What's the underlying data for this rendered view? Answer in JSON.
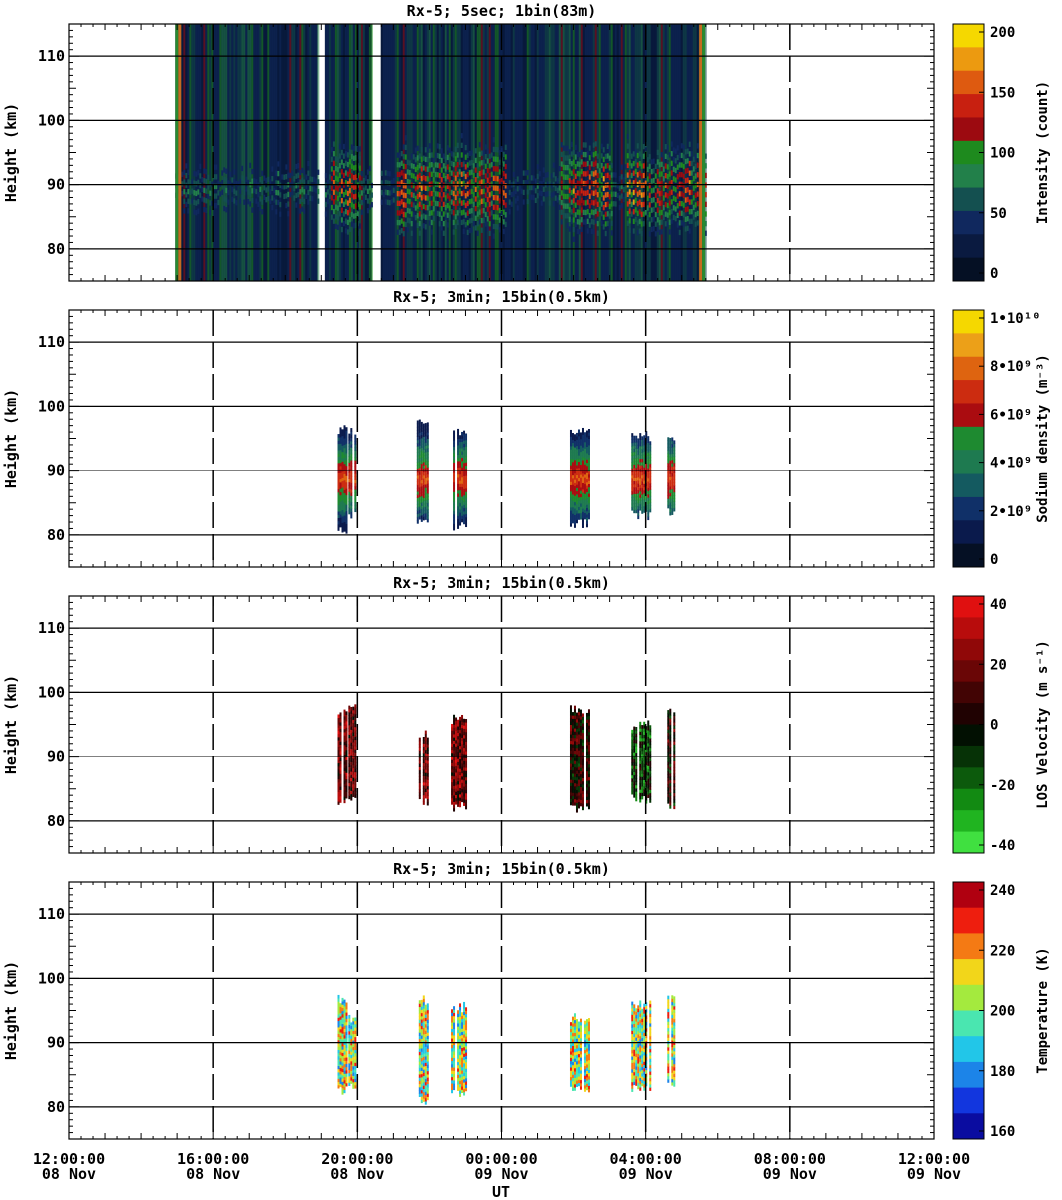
{
  "x_axis": {
    "label": "UT",
    "ticks": [
      {
        "time": "12:00:00",
        "date": "08 Nov"
      },
      {
        "time": "16:00:00",
        "date": "08 Nov"
      },
      {
        "time": "20:00:00",
        "date": "08 Nov"
      },
      {
        "time": "00:00:00",
        "date": "09 Nov"
      },
      {
        "time": "04:00:00",
        "date": "09 Nov"
      },
      {
        "time": "08:00:00",
        "date": "09 Nov"
      },
      {
        "time": "12:00:00",
        "date": "09 Nov"
      }
    ]
  },
  "chart_data": [
    {
      "type": "heatmap",
      "title": "Rx-5;  5sec; 1bin(83m)",
      "ylabel": "Height (km)",
      "y_ticks": [
        "110",
        "100",
        "90",
        "80"
      ],
      "ylim": [
        75,
        115
      ],
      "x_range_hours": [
        0,
        24
      ],
      "colorbar": {
        "label": "Intensity (count)",
        "ticks": [
          "200",
          "150",
          "100",
          "50",
          "0"
        ],
        "colors": [
          "#f5d800",
          "#ec9a10",
          "#de5a10",
          "#c82010",
          "#9c0a10",
          "#1e8a1e",
          "#22804a",
          "#145050",
          "#10285e",
          "#0a1a40",
          "#051024"
        ]
      },
      "data_segments_hours": [
        [
          2.95,
          6.9
        ],
        [
          7.1,
          8.4
        ],
        [
          8.65,
          17.65
        ]
      ],
      "layer_peak_height_km": 89
    },
    {
      "type": "heatmap",
      "title": "Rx-5; 3min; 15bin(0.5km)",
      "ylabel": "Height (km)",
      "y_ticks": [
        "110",
        "100",
        "90",
        "80"
      ],
      "ylim": [
        75,
        115
      ],
      "x_range_hours": [
        0,
        24
      ],
      "colorbar": {
        "label": "Sodium density (m⁻³)",
        "ticks": [
          "1•10¹⁰",
          "8•10⁹",
          "6•10⁹",
          "4•10⁹",
          "2•10⁹",
          "0"
        ],
        "colors": [
          "#f5d800",
          "#eca018",
          "#de6410",
          "#cc2c10",
          "#aa0c10",
          "#1e8a30",
          "#1e7a50",
          "#145a60",
          "#103068",
          "#0a1a4c",
          "#051024"
        ]
      },
      "data_segments_hours": [
        [
          7.45,
          7.7
        ],
        [
          7.75,
          7.95
        ],
        [
          9.65,
          9.95
        ],
        [
          10.6,
          11.0
        ],
        [
          13.9,
          14.4
        ],
        [
          15.6,
          16.1
        ],
        [
          16.6,
          16.8
        ]
      ],
      "layer_peak_height_km": 89
    },
    {
      "type": "heatmap",
      "title": "Rx-5; 3min; 15bin(0.5km)",
      "ylabel": "Height (km)",
      "y_ticks": [
        "110",
        "100",
        "90",
        "80"
      ],
      "ylim": [
        75,
        115
      ],
      "x_range_hours": [
        0,
        24
      ],
      "colorbar": {
        "label": "LOS Velocity (m s⁻¹)",
        "ticks": [
          "40",
          "20",
          "0",
          "-20",
          "-40"
        ],
        "colors": [
          "#e01010",
          "#b80c0c",
          "#900808",
          "#6a0606",
          "#420404",
          "#200202",
          "#021002",
          "#063206",
          "#0c5a0c",
          "#128a12",
          "#20b420",
          "#40e040"
        ]
      },
      "data_segments_hours": [
        [
          7.45,
          7.7
        ],
        [
          7.75,
          7.95
        ],
        [
          9.65,
          9.95
        ],
        [
          10.6,
          11.0
        ],
        [
          13.9,
          14.4
        ],
        [
          15.6,
          16.1
        ],
        [
          16.6,
          16.8
        ]
      ]
    },
    {
      "type": "heatmap",
      "title": "Rx-5; 3min; 15bin(0.5km)",
      "ylabel": "Height (km)",
      "y_ticks": [
        "110",
        "100",
        "90",
        "80"
      ],
      "ylim": [
        75,
        115
      ],
      "x_range_hours": [
        0,
        24
      ],
      "colorbar": {
        "label": "Temperature (K)",
        "ticks": [
          "240",
          "220",
          "200",
          "180",
          "160"
        ],
        "colors": [
          "#b00010",
          "#ee1e0e",
          "#f47a14",
          "#f2d61a",
          "#a4ea3e",
          "#4ae6b0",
          "#22c6e8",
          "#1c84e8",
          "#1236de",
          "#0a0ca0"
        ]
      },
      "data_segments_hours": [
        [
          7.45,
          7.7
        ],
        [
          7.75,
          7.95
        ],
        [
          9.65,
          9.95
        ],
        [
          10.6,
          11.0
        ],
        [
          13.9,
          14.4
        ],
        [
          15.6,
          16.1
        ],
        [
          16.6,
          16.8
        ]
      ]
    }
  ]
}
